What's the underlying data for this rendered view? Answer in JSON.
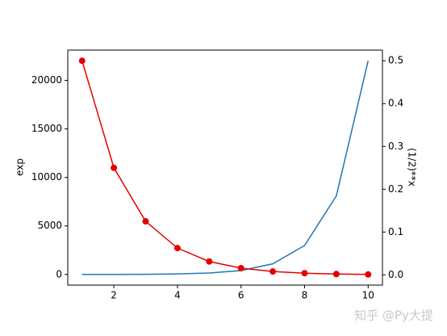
{
  "chart_data": {
    "type": "line",
    "x": [
      1,
      2,
      3,
      4,
      5,
      6,
      7,
      8,
      9,
      10
    ],
    "xlim": [
      0.55,
      10.45
    ],
    "xticks": [
      2,
      4,
      6,
      8,
      10
    ],
    "ylabel": "exp",
    "y2label": "(1/2)**x",
    "ylim": [
      -1098.5,
      23127.0
    ],
    "yticks": [
      0,
      5000,
      10000,
      15000,
      20000
    ],
    "y2lim": [
      -0.02397,
      0.52495
    ],
    "y2ticks": [
      {
        "value": 0,
        "label": "0.0"
      },
      0.1,
      0.2,
      0.3,
      0.4,
      0.5
    ],
    "series": [
      {
        "color": "#1f77b4",
        "axis": "y",
        "marker": false,
        "values": [
          2.718,
          7.389,
          20.09,
          54.6,
          148.4,
          403.4,
          1096.6,
          2981.0,
          8103.1,
          22026.5
        ]
      },
      {
        "color": "#e50000",
        "axis": "y2",
        "marker": true,
        "values": [
          0.5,
          0.25,
          0.125,
          0.0625,
          0.03125,
          0.015625,
          0.0078125,
          0.00390625,
          0.001953125,
          0.0009765625
        ]
      }
    ],
    "watermark": "知乎 @Py大提"
  }
}
